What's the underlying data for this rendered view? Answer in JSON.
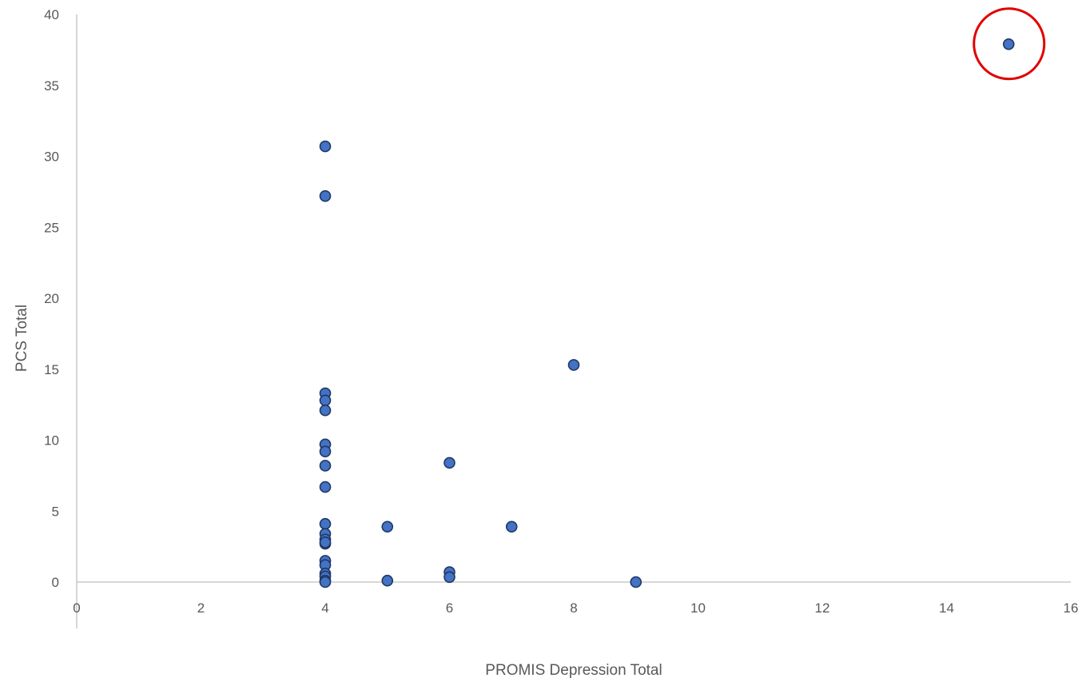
{
  "chart_data": {
    "type": "scatter",
    "title": "",
    "xlabel": "PROMIS Depression Total",
    "ylabel": "PCS Total",
    "xlim": [
      0,
      16
    ],
    "ylim": [
      0,
      40
    ],
    "x_ticks": [
      0,
      2,
      4,
      6,
      8,
      10,
      12,
      14,
      16
    ],
    "y_ticks": [
      0,
      5,
      10,
      15,
      20,
      25,
      30,
      35,
      40
    ],
    "grid": false,
    "legend": "none",
    "point_color": "#4472c4",
    "point_edge_color": "#1f3864",
    "highlight_color": "#e00000",
    "points": [
      {
        "x": 4,
        "y": 30.7
      },
      {
        "x": 4,
        "y": 27.2
      },
      {
        "x": 4,
        "y": 13.3
      },
      {
        "x": 4,
        "y": 12.8
      },
      {
        "x": 4,
        "y": 12.1
      },
      {
        "x": 4,
        "y": 9.7
      },
      {
        "x": 4,
        "y": 9.2
      },
      {
        "x": 4,
        "y": 8.2
      },
      {
        "x": 4,
        "y": 6.7
      },
      {
        "x": 4,
        "y": 4.1
      },
      {
        "x": 4,
        "y": 3.4
      },
      {
        "x": 4,
        "y": 3.0
      },
      {
        "x": 4,
        "y": 2.7
      },
      {
        "x": 4,
        "y": 2.8
      },
      {
        "x": 4,
        "y": 1.5
      },
      {
        "x": 4,
        "y": 1.2
      },
      {
        "x": 4,
        "y": 0.6
      },
      {
        "x": 4,
        "y": 0.4
      },
      {
        "x": 4,
        "y": 0.1
      },
      {
        "x": 4,
        "y": 0.0
      },
      {
        "x": 5,
        "y": 3.9
      },
      {
        "x": 5,
        "y": 0.1
      },
      {
        "x": 6,
        "y": 8.4
      },
      {
        "x": 6,
        "y": 0.7
      },
      {
        "x": 6,
        "y": 0.35
      },
      {
        "x": 7,
        "y": 3.9
      },
      {
        "x": 8,
        "y": 15.3
      },
      {
        "x": 9,
        "y": 0.0
      },
      {
        "x": 15,
        "y": 37.9
      }
    ],
    "highlighted_point_index": 28
  }
}
